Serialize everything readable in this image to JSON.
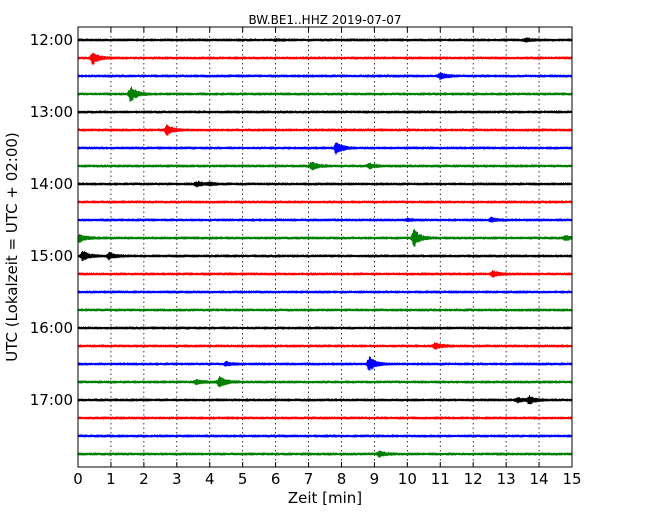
{
  "chart_data": {
    "type": "line",
    "title": "BW.BE1..HHZ 2019-07-07",
    "xlabel": "Zeit  [min]",
    "ylabel": "UTC (Lokalzeit = UTC + 02:00)",
    "xlim": [
      0,
      15
    ],
    "x_ticks": [
      "0",
      "1",
      "2",
      "3",
      "4",
      "5",
      "6",
      "7",
      "8",
      "9",
      "10",
      "11",
      "12",
      "13",
      "14",
      "15"
    ],
    "y_ticks": [
      "12:00",
      "13:00",
      "14:00",
      "15:00",
      "16:00",
      "17:00"
    ],
    "grid": true,
    "trace_colors": [
      "#000000",
      "#ff0000",
      "#0000ff",
      "#008000"
    ],
    "series": [
      {
        "start": "12:00",
        "events": [
          {
            "t": 13.6,
            "amp": 0.25
          },
          {
            "t": 6.0,
            "amp": 0.1
          }
        ]
      },
      {
        "start": "12:15",
        "events": [
          {
            "t": 0.45,
            "amp": 0.9
          }
        ]
      },
      {
        "start": "12:30",
        "events": [
          {
            "t": 11.0,
            "amp": 0.5
          }
        ]
      },
      {
        "start": "12:45",
        "events": [
          {
            "t": 1.6,
            "amp": 1.1
          }
        ]
      },
      {
        "start": "13:00",
        "events": []
      },
      {
        "start": "13:15",
        "events": [
          {
            "t": 2.7,
            "amp": 0.7
          }
        ]
      },
      {
        "start": "13:30",
        "events": [
          {
            "t": 7.85,
            "amp": 0.95
          }
        ]
      },
      {
        "start": "13:45",
        "events": [
          {
            "t": 7.1,
            "amp": 0.6
          },
          {
            "t": 8.85,
            "amp": 0.35
          }
        ]
      },
      {
        "start": "14:00",
        "events": [
          {
            "t": 3.6,
            "amp": 0.35
          },
          {
            "t": 4.0,
            "amp": 0.2
          }
        ]
      },
      {
        "start": "14:15",
        "events": []
      },
      {
        "start": "14:30",
        "events": [
          {
            "t": 10.0,
            "amp": 0.15
          },
          {
            "t": 12.55,
            "amp": 0.3
          }
        ]
      },
      {
        "start": "14:45",
        "events": [
          {
            "t": 0.05,
            "amp": 0.6
          },
          {
            "t": 10.2,
            "amp": 1.3
          },
          {
            "t": 14.8,
            "amp": 0.3
          }
        ]
      },
      {
        "start": "15:00",
        "events": [
          {
            "t": 0.15,
            "amp": 0.7
          },
          {
            "t": 0.95,
            "amp": 0.45
          }
        ]
      },
      {
        "start": "15:15",
        "events": [
          {
            "t": 12.6,
            "amp": 0.45
          }
        ]
      },
      {
        "start": "15:30",
        "events": []
      },
      {
        "start": "15:45",
        "events": []
      },
      {
        "start": "16:00",
        "events": []
      },
      {
        "start": "16:15",
        "events": [
          {
            "t": 10.85,
            "amp": 0.45
          }
        ]
      },
      {
        "start": "16:30",
        "events": [
          {
            "t": 4.5,
            "amp": 0.25
          },
          {
            "t": 8.85,
            "amp": 1.0
          }
        ]
      },
      {
        "start": "16:45",
        "events": [
          {
            "t": 3.6,
            "amp": 0.35
          },
          {
            "t": 4.3,
            "amp": 0.8
          }
        ]
      },
      {
        "start": "17:00",
        "events": [
          {
            "t": 13.35,
            "amp": 0.35
          },
          {
            "t": 13.7,
            "amp": 0.55
          }
        ]
      },
      {
        "start": "17:15",
        "events": []
      },
      {
        "start": "17:30",
        "events": []
      },
      {
        "start": "17:45",
        "events": [
          {
            "t": 9.15,
            "amp": 0.45
          }
        ]
      }
    ]
  }
}
